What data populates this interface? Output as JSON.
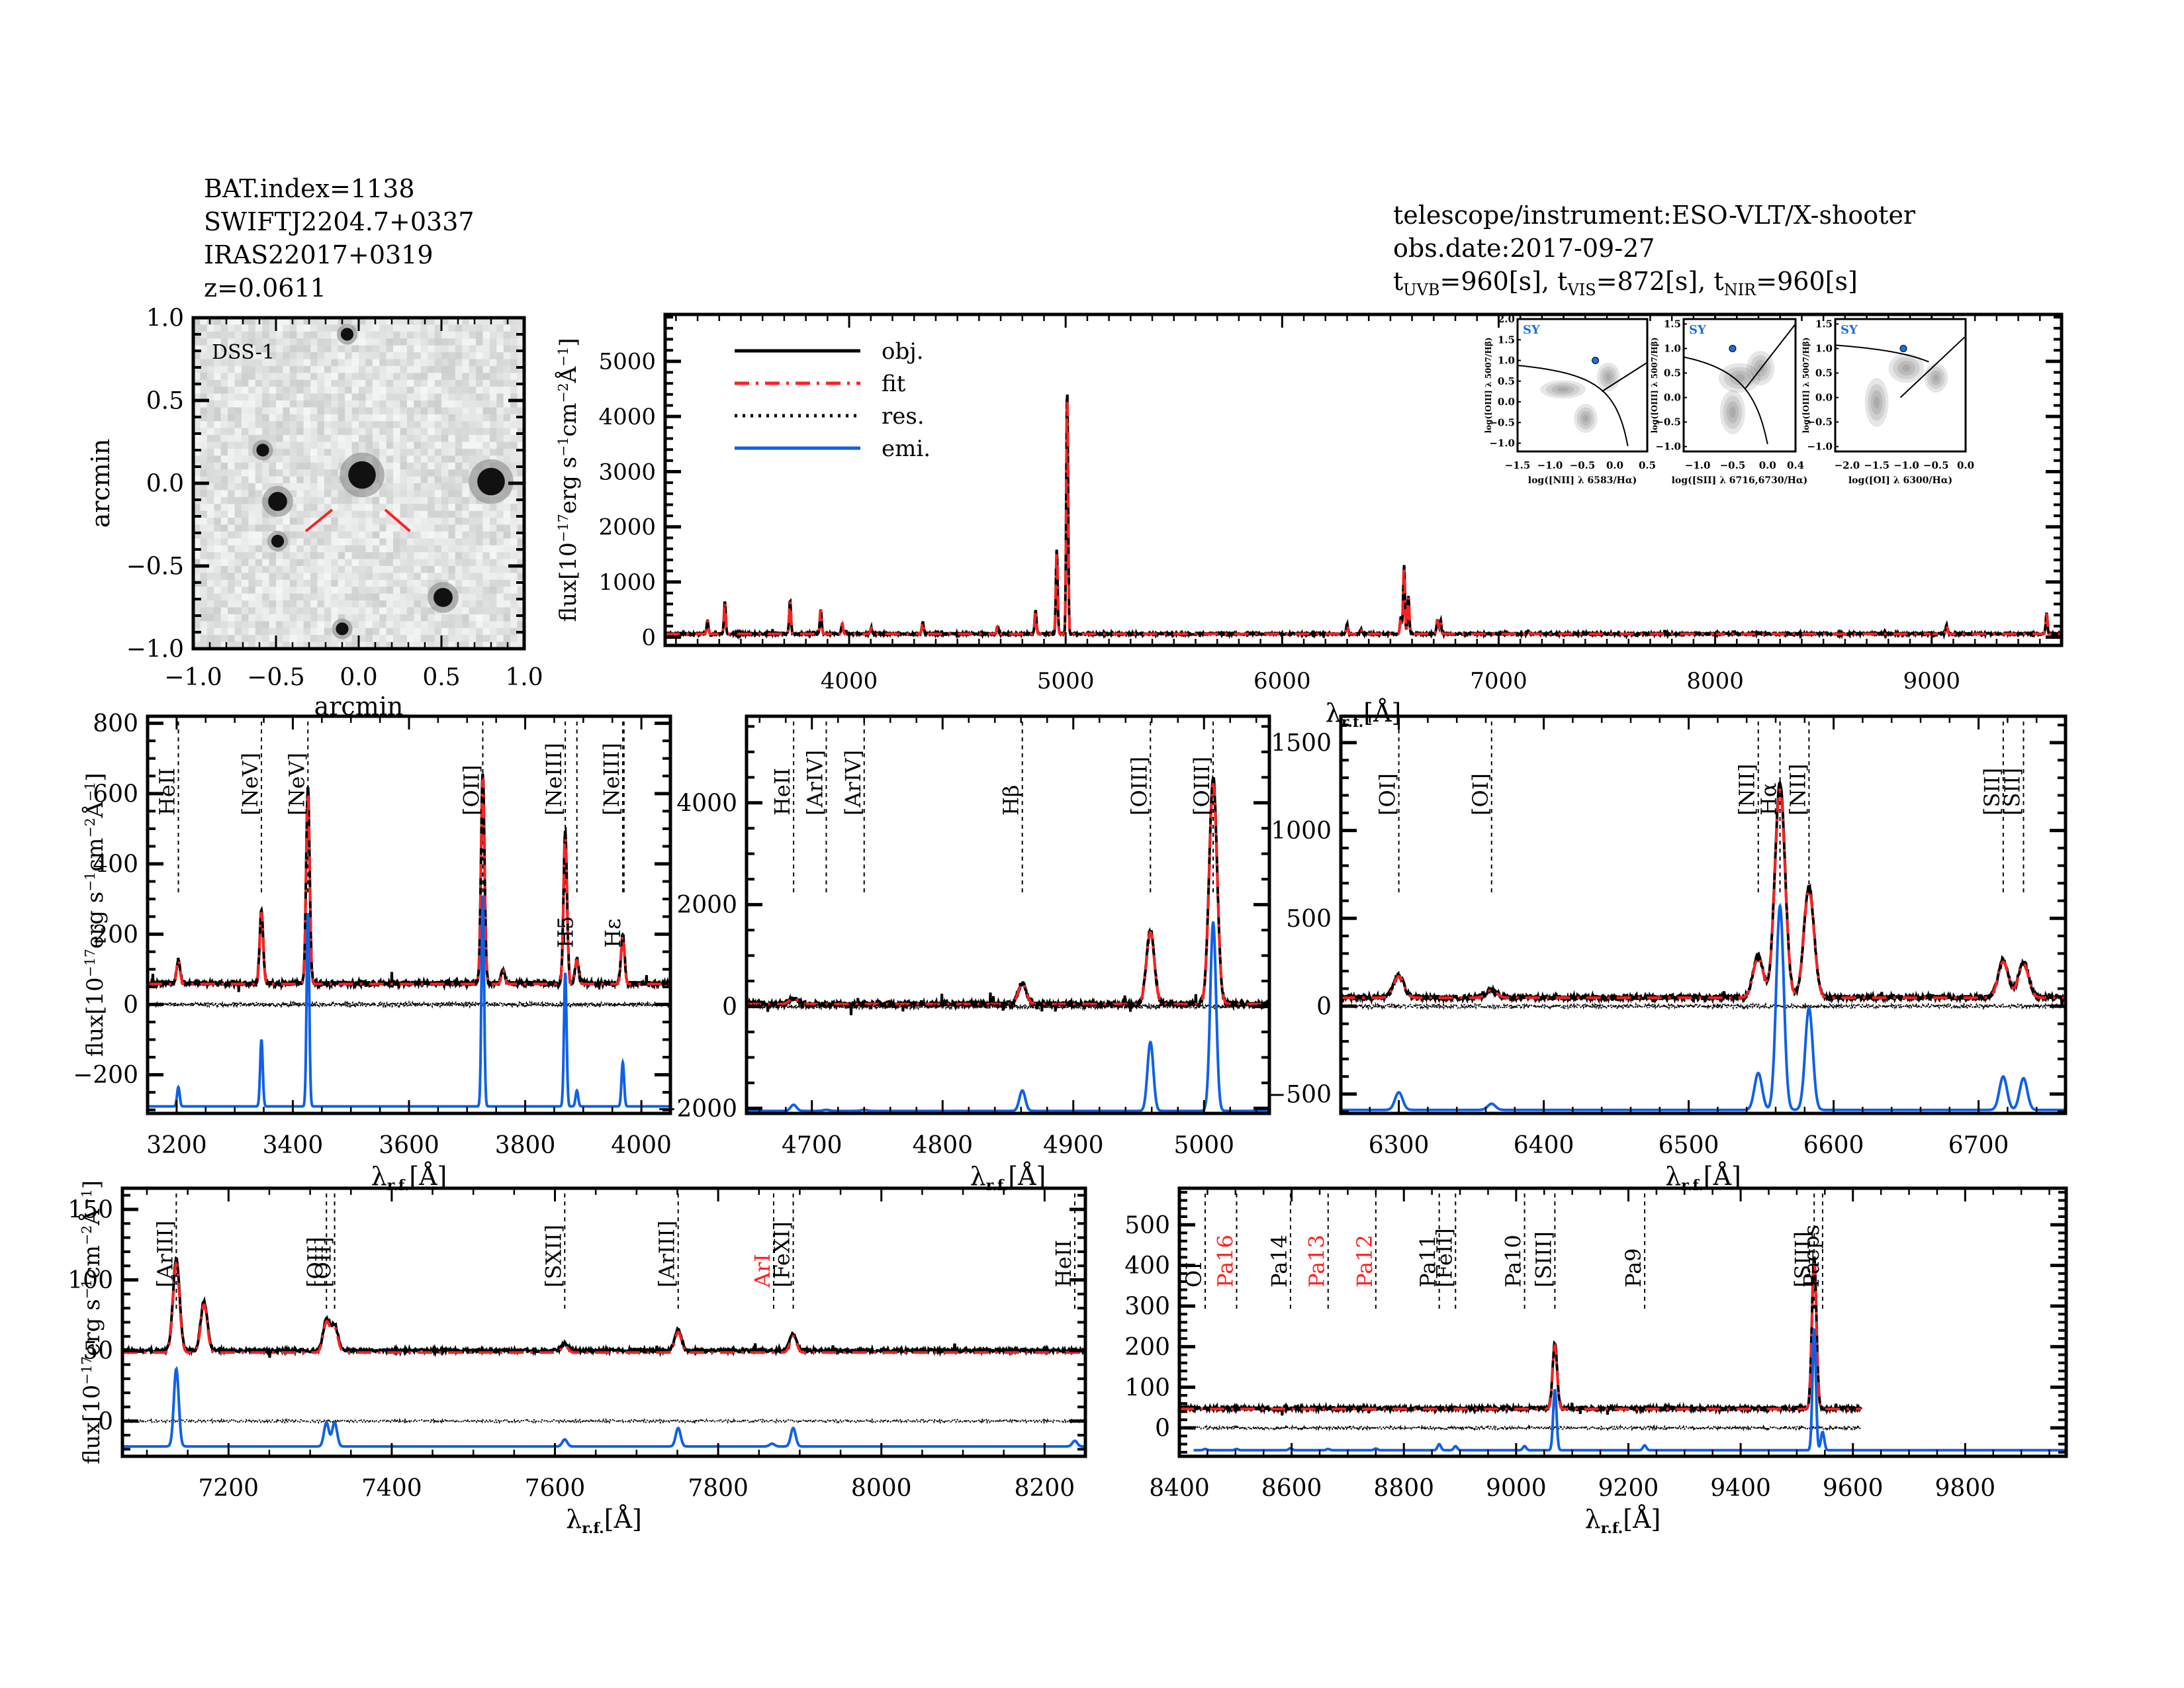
{
  "header_left": {
    "bat_index": "BAT.index=1138",
    "swift_name": "SWIFTJ2204.7+0337",
    "counterpart": "IRAS22017+0319",
    "redshift": "z=0.0611"
  },
  "header_right": {
    "instrument": "telescope/instrument:ESO-VLT/X-shooter",
    "obs_date": "obs.date:2017-09-27",
    "exposures": [
      {
        "label": "t",
        "sub": "UVB",
        "value": "=960[s], "
      },
      {
        "label": "t",
        "sub": "VIS",
        "value": "=872[s], "
      },
      {
        "label": "t",
        "sub": "NIR",
        "value": "=960[s]"
      }
    ]
  },
  "colors": {
    "obj": "#000000",
    "fit": "#ff2020",
    "res": "#000000",
    "emi": "#1060e8",
    "bpt_point": "#1a6fe0",
    "sy_label": "#1a6fe0",
    "red_label": "#ff2020"
  },
  "chart_data": [
    {
      "id": "dss-image",
      "type": "heatmap",
      "title": "DSS-1",
      "xlabel": "arcmin",
      "ylabel": "arcmin",
      "xlim": [
        -1.0,
        1.0
      ],
      "ylim": [
        -1.0,
        1.0
      ],
      "xticks": [
        "-1.0",
        "-0.5",
        "0.0",
        "0.5",
        "1.0"
      ],
      "yticks": [
        "-1.0",
        "-0.5",
        "0.0",
        "0.5",
        "1.0"
      ],
      "sources": [
        {
          "x": 0.02,
          "y": 0.05,
          "size": "large"
        },
        {
          "x": 0.8,
          "y": 0.01,
          "size": "large"
        },
        {
          "x": -0.49,
          "y": -0.11,
          "size": "medium"
        },
        {
          "x": 0.51,
          "y": -0.69,
          "size": "medium"
        },
        {
          "x": -0.07,
          "y": 0.9,
          "size": "small"
        },
        {
          "x": -0.58,
          "y": 0.2,
          "size": "small"
        },
        {
          "x": -0.49,
          "y": -0.35,
          "size": "small"
        },
        {
          "x": -0.1,
          "y": -0.88,
          "size": "small"
        }
      ],
      "marker": "red-crosshair-lines"
    },
    {
      "id": "full-spectrum",
      "type": "line",
      "xlabel": "λr.f.[Å]",
      "ylabel": "flux[10⁻¹⁷erg s⁻¹cm⁻²Å⁻¹]",
      "xlim": [
        3150,
        9600
      ],
      "ylim": [
        -150,
        5850
      ],
      "xticks": [
        4000,
        5000,
        6000,
        7000,
        8000,
        9000
      ],
      "yticks": [
        0,
        1000,
        2000,
        3000,
        4000,
        5000
      ],
      "legend": {
        "position": "top-left",
        "entries": [
          "obj.",
          "fit",
          "res.",
          "emi."
        ]
      },
      "continuum": 60,
      "peaks": [
        [
          3346,
          250
        ],
        [
          3426,
          600
        ],
        [
          3727,
          620
        ],
        [
          3869,
          460
        ],
        [
          3968,
          190
        ],
        [
          4102,
          110
        ],
        [
          4340,
          220
        ],
        [
          4686,
          130
        ],
        [
          4861,
          450
        ],
        [
          4959,
          1550
        ],
        [
          5007,
          4500
        ],
        [
          6300,
          170
        ],
        [
          6364,
          80
        ],
        [
          6548,
          300
        ],
        [
          6563,
          1270
        ],
        [
          6583,
          680
        ],
        [
          6717,
          260
        ],
        [
          6731,
          250
        ],
        [
          7136,
          70
        ],
        [
          9069,
          160
        ],
        [
          9531,
          380
        ]
      ],
      "series": [
        {
          "name": "obj."
        },
        {
          "name": "fit"
        }
      ]
    },
    {
      "id": "bpt-nii",
      "type": "scatter",
      "label": "SY",
      "xlabel": "log([NII] λ 6583/Hα)",
      "ylabel": "log([OIII] λ 5007/Hβ)",
      "xlim": [
        -1.5,
        0.5
      ],
      "ylim": [
        -1.2,
        2.0
      ],
      "xticks": [
        "-1.5",
        "-1.0",
        "-0.5",
        "0.0",
        "0.5"
      ],
      "yticks": [
        "-1.0",
        "-0.5",
        "0.0",
        "0.5",
        "1.0",
        "1.5",
        "2.0"
      ],
      "point": {
        "x": -0.3,
        "y": 1.0
      }
    },
    {
      "id": "bpt-sii",
      "type": "scatter",
      "label": "SY",
      "xlabel": "log([SII] λ 6716,6730/Hα)",
      "ylabel": "log([OIII] λ 5007/Hβ)",
      "xlim": [
        -1.2,
        0.4
      ],
      "ylim": [
        -1.1,
        1.6
      ],
      "xticks": [
        "-1.0",
        "-0.5",
        "0.0",
        "0.4"
      ],
      "yticks": [
        "-1.0",
        "-0.5",
        "0.0",
        "0.5",
        "1.0",
        "1.5"
      ],
      "point": {
        "x": -0.5,
        "y": 1.0
      }
    },
    {
      "id": "bpt-oi",
      "type": "scatter",
      "label": "SY",
      "xlabel": "log([OI] λ 6300/Hα)",
      "ylabel": "log([OIII] λ 5007/Hβ)",
      "xlim": [
        -2.2,
        0.0
      ],
      "ylim": [
        -1.1,
        1.6
      ],
      "xticks": [
        "-2.0",
        "-1.5",
        "-1.0",
        "-0.5",
        "0.0"
      ],
      "yticks": [
        "-1.0",
        "-0.5",
        "0.0",
        "0.5",
        "1.0",
        "1.5"
      ],
      "point": {
        "x": -1.05,
        "y": 1.0
      }
    },
    {
      "id": "zoom-blue",
      "type": "line",
      "xlabel": "λr.f.[Å]",
      "ylabel": "flux[10⁻¹⁷erg s⁻¹cm⁻²Å⁻¹]",
      "xlim": [
        3150,
        4050
      ],
      "ylim": [
        -310,
        820
      ],
      "xticks": [
        3200,
        3400,
        3600,
        3800,
        4000
      ],
      "yticks": [
        -200,
        0,
        200,
        400,
        600,
        800
      ],
      "continuum": 60,
      "emi_baseline": -290,
      "width": 3,
      "peaks": [
        [
          3203,
          70
        ],
        [
          3346,
          210
        ],
        [
          3426,
          560
        ],
        [
          3727,
          600
        ],
        [
          3762,
          40
        ],
        [
          3869,
          430
        ],
        [
          3889,
          70
        ],
        [
          3968,
          140
        ]
      ],
      "emi_peaks": [
        [
          3203,
          55
        ],
        [
          3346,
          190
        ],
        [
          3426,
          550
        ],
        [
          3727,
          600
        ],
        [
          3869,
          380
        ],
        [
          3889,
          45
        ],
        [
          3968,
          125
        ]
      ],
      "line_labels": [
        {
          "wl": 3203,
          "text": "HeII",
          "color": "black"
        },
        {
          "wl": 3346,
          "text": "[NeV]",
          "color": "black"
        },
        {
          "wl": 3426,
          "text": "[NeV]",
          "color": "black"
        },
        {
          "wl": 3727,
          "text": "[OII]",
          "color": "black"
        },
        {
          "wl": 3869,
          "text": "[NeIII]",
          "color": "black"
        },
        {
          "wl": 3889,
          "text": "H5",
          "color": "black"
        },
        {
          "wl": 3968,
          "text": "[NeIII]",
          "color": "black"
        },
        {
          "wl": 3970,
          "text": "Hε",
          "color": "black"
        }
      ]
    },
    {
      "id": "zoom-hbeta",
      "type": "line",
      "xlabel": "λr.f.[Å]",
      "ylabel": "",
      "xlim": [
        4650,
        5050
      ],
      "ylim": [
        -2100,
        5700
      ],
      "xticks": [
        4700,
        4800,
        4900,
        5000
      ],
      "yticks": [
        -2000,
        0,
        2000,
        4000
      ],
      "continuum": 50,
      "emi_baseline": -2050,
      "width": 3,
      "peaks": [
        [
          4686,
          120
        ],
        [
          4861,
          420
        ],
        [
          4959,
          1450
        ],
        [
          5007,
          4450
        ]
      ],
      "emi_peaks": [
        [
          4686,
          120
        ],
        [
          4711,
          20
        ],
        [
          4740,
          20
        ],
        [
          4861,
          400
        ],
        [
          4959,
          1350
        ],
        [
          5007,
          3700
        ]
      ],
      "line_labels": [
        {
          "wl": 4686,
          "text": "HeII",
          "color": "black"
        },
        {
          "wl": 4711,
          "text": "[ArIV]",
          "color": "black"
        },
        {
          "wl": 4740,
          "text": "[ArIV]",
          "color": "black"
        },
        {
          "wl": 4861,
          "text": "Hβ",
          "color": "black"
        },
        {
          "wl": 4959,
          "text": "[OIII]",
          "color": "black"
        },
        {
          "wl": 5007,
          "text": "[OIII]",
          "color": "black"
        }
      ]
    },
    {
      "id": "zoom-halpha",
      "type": "line",
      "xlabel": "λr.f.[Å]",
      "ylabel": "",
      "xlim": [
        6260,
        6760
      ],
      "ylim": [
        -610,
        1650
      ],
      "xticks": [
        6300,
        6400,
        6500,
        6600,
        6700
      ],
      "yticks": [
        -500,
        0,
        500,
        1000,
        1500
      ],
      "continuum": 50,
      "emi_baseline": -590,
      "width": 3.5,
      "peaks": [
        [
          6300,
          125
        ],
        [
          6364,
          45
        ],
        [
          6548,
          235
        ],
        [
          6563,
          1220
        ],
        [
          6583,
          630
        ],
        [
          6717,
          210
        ],
        [
          6731,
          200
        ]
      ],
      "emi_peaks": [
        [
          6300,
          100
        ],
        [
          6364,
          35
        ],
        [
          6548,
          210
        ],
        [
          6563,
          1160
        ],
        [
          6583,
          580
        ],
        [
          6717,
          190
        ],
        [
          6731,
          180
        ]
      ],
      "line_labels": [
        {
          "wl": 6300,
          "text": "[OI]",
          "color": "black"
        },
        {
          "wl": 6364,
          "text": "[OI]",
          "color": "black"
        },
        {
          "wl": 6548,
          "text": "[NII]",
          "color": "black"
        },
        {
          "wl": 6563,
          "text": "Hα",
          "color": "black"
        },
        {
          "wl": 6583,
          "text": "[NII]",
          "color": "black"
        },
        {
          "wl": 6717,
          "text": "[SII]",
          "color": "black"
        },
        {
          "wl": 6731,
          "text": "[SII]",
          "color": "black"
        }
      ]
    },
    {
      "id": "zoom-red",
      "type": "line",
      "xlabel": "λr.f.[Å]",
      "ylabel": "flux[10⁻¹⁷erg s⁻¹cm⁻²Å⁻¹]",
      "xlim": [
        7070,
        8250
      ],
      "ylim": [
        -25,
        165
      ],
      "xticks": [
        7200,
        7400,
        7600,
        7800,
        8000,
        8200
      ],
      "yticks": [
        0,
        50,
        100,
        150
      ],
      "continuum": 50,
      "emi_baseline": -18,
      "width": 4,
      "peaks": [
        [
          7136,
          65
        ],
        [
          7170,
          35
        ],
        [
          7320,
          22
        ],
        [
          7330,
          18
        ],
        [
          7612,
          5
        ],
        [
          7751,
          15
        ],
        [
          7892,
          12
        ]
      ],
      "emi_peaks": [
        [
          7136,
          55
        ],
        [
          7320,
          17
        ],
        [
          7330,
          17
        ],
        [
          7612,
          5
        ],
        [
          7751,
          13
        ],
        [
          7866,
          2
        ],
        [
          7892,
          13
        ],
        [
          8237,
          4
        ]
      ],
      "line_labels": [
        {
          "wl": 7136,
          "text": "[ArIII]",
          "color": "black"
        },
        {
          "wl": 7320,
          "text": "[OII]",
          "color": "black"
        },
        {
          "wl": 7330,
          "text": "[OII]",
          "color": "black"
        },
        {
          "wl": 7612,
          "text": "[SXII]",
          "color": "black"
        },
        {
          "wl": 7751,
          "text": "[ArIII]",
          "color": "black"
        },
        {
          "wl": 7868,
          "text": "ArI",
          "color": "red"
        },
        {
          "wl": 7892,
          "text": "[FeXI]",
          "color": "black"
        },
        {
          "wl": 8237,
          "text": "HeII",
          "color": "black"
        }
      ]
    },
    {
      "id": "zoom-nir",
      "type": "line",
      "xlabel": "λr.f.[Å]",
      "ylabel": "",
      "xlim": [
        8400,
        9980
      ],
      "ylim": [
        -70,
        590
      ],
      "xticks": [
        8400,
        8600,
        8800,
        9000,
        9200,
        9400,
        9600,
        9800
      ],
      "yticks": [
        0,
        100,
        200,
        300,
        400,
        500
      ],
      "continuum": 48,
      "emi_baseline": -55,
      "width": 4,
      "data_end": 9615,
      "peaks": [
        [
          9069,
          160
        ],
        [
          9531,
          370
        ]
      ],
      "emi_peaks": [
        [
          8446,
          3
        ],
        [
          8502,
          3
        ],
        [
          8598,
          5
        ],
        [
          8665,
          3
        ],
        [
          8750,
          4
        ],
        [
          8863,
          15
        ],
        [
          8892,
          10
        ],
        [
          9015,
          10
        ],
        [
          9069,
          150
        ],
        [
          9229,
          12
        ],
        [
          9531,
          300
        ],
        [
          9546,
          45
        ]
      ],
      "line_labels": [
        {
          "wl": 8446,
          "text": "OI",
          "color": "black"
        },
        {
          "wl": 8502,
          "text": "Pa16",
          "color": "red"
        },
        {
          "wl": 8598,
          "text": "Pa14",
          "color": "black"
        },
        {
          "wl": 8665,
          "text": "Pa13",
          "color": "red"
        },
        {
          "wl": 8750,
          "text": "Pa12",
          "color": "red"
        },
        {
          "wl": 8863,
          "text": "Pa11",
          "color": "black"
        },
        {
          "wl": 8892,
          "text": "[FeII]",
          "color": "black"
        },
        {
          "wl": 9015,
          "text": "Pa10",
          "color": "black"
        },
        {
          "wl": 9069,
          "text": "[SIII]",
          "color": "black"
        },
        {
          "wl": 9229,
          "text": "Pa9",
          "color": "black"
        },
        {
          "wl": 9531,
          "text": "[SIII]",
          "color": "black"
        },
        {
          "wl": 9546,
          "text": "Paeps",
          "color": "black"
        }
      ]
    }
  ]
}
